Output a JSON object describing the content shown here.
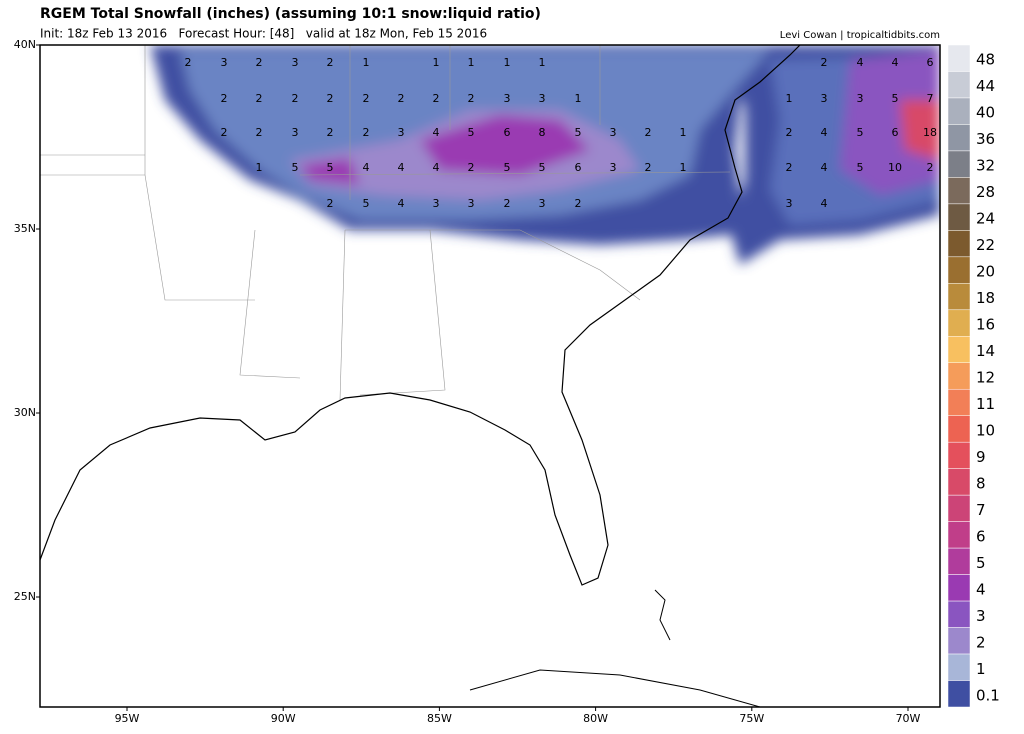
{
  "header": {
    "title": "RGEM Total Snowfall (inches) (assuming 10:1 snow:liquid ratio)",
    "subtitle": "Init: 18z Feb 13 2016   Forecast Hour: [48]   valid at 18z Mon, Feb 15 2016",
    "credit": "Levi Cowan | tropicaltidbits.com"
  },
  "axes": {
    "lat_labels": [
      "40N",
      "35N",
      "30N",
      "25N"
    ],
    "lon_labels": [
      "95W",
      "90W",
      "85W",
      "80W",
      "75W",
      "70W"
    ]
  },
  "colorbar": {
    "levels": [
      48,
      44,
      40,
      36,
      32,
      28,
      24,
      22,
      20,
      18,
      16,
      14,
      12,
      11,
      10,
      9,
      8,
      7,
      6,
      5,
      4,
      3,
      2,
      1,
      0.1
    ],
    "colors": [
      "#e6e8ee",
      "#c8ccd6",
      "#aab0bd",
      "#8f96a4",
      "#7c7f88",
      "#7b6a5c",
      "#6e5a43",
      "#7c5a2e",
      "#9a6f30",
      "#b98b3b",
      "#e0ae50",
      "#f8c060",
      "#f59c5a",
      "#f27f57",
      "#ed6352",
      "#e4505c",
      "#d84a68",
      "#cc4477",
      "#c03e89",
      "#b03c9c",
      "#9a3ab2",
      "#8a55c0",
      "#9c88cc",
      "#a8b6d8",
      "#3f4fa2"
    ]
  },
  "map_labels": {
    "rows": [
      [
        2,
        3,
        2,
        3,
        2,
        1,
        1,
        1,
        1,
        1,
        2,
        4,
        4,
        6
      ],
      [
        2,
        2,
        2,
        2,
        2,
        2,
        2,
        2,
        3,
        3,
        1,
        1,
        3,
        3,
        5,
        7
      ],
      [
        2,
        2,
        3,
        2,
        2,
        3,
        4,
        5,
        6,
        8,
        5,
        3,
        2,
        1,
        2,
        4,
        5,
        6,
        18
      ],
      [
        1,
        5,
        5,
        4,
        4,
        4,
        2,
        5,
        5,
        6,
        3,
        2,
        1,
        2,
        4,
        5,
        10,
        2
      ],
      [
        2,
        5,
        4,
        3,
        3,
        2,
        3,
        2,
        3,
        4
      ]
    ]
  }
}
